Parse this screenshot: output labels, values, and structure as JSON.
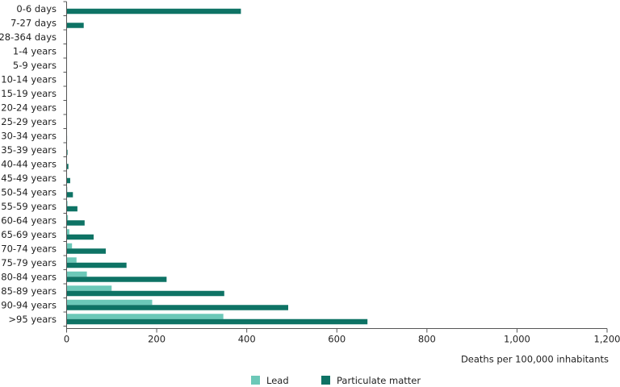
{
  "chart_data": {
    "type": "bar",
    "orientation": "horizontal",
    "categories": [
      "0-6 days",
      "7-27 days",
      "28-364 days",
      "1-4 years",
      "5-9 years",
      "10-14 years",
      "15-19 years",
      "20-24 years",
      "25-29 years",
      "30-34 years",
      "35-39 years",
      "40-44 years",
      "45-49 years",
      "50-54 years",
      "55-59 years",
      "60-64 years",
      "65-69 years",
      "70-74 years",
      "75-79 years",
      "80-84 years",
      "85-89 years",
      "90-94 years",
      ">95 years"
    ],
    "series": [
      {
        "name": "Lead",
        "color": "#6cc8b8",
        "values": [
          0,
          0,
          0,
          0,
          0,
          0,
          0,
          0,
          0,
          0,
          0,
          0.5,
          1,
          1.5,
          2,
          3,
          6,
          12,
          22,
          45,
          100,
          190,
          348
        ]
      },
      {
        "name": "Particulate matter",
        "color": "#0e7365",
        "values": [
          387,
          38,
          0,
          0,
          0,
          0,
          0,
          0.5,
          0.5,
          1,
          2,
          4,
          8,
          14,
          24,
          40,
          60,
          87,
          133,
          222,
          350,
          492,
          668
        ]
      }
    ],
    "xlabel": "Deaths per 100,000 inhabitants",
    "xlim": [
      0,
      1200
    ],
    "xticks": [
      "0",
      "200",
      "400",
      "600",
      "800",
      "1,000",
      "1,200"
    ],
    "xtick_values": [
      0,
      200,
      400,
      600,
      800,
      1000,
      1200
    ],
    "grid": false,
    "legend_position": "bottom-center"
  }
}
